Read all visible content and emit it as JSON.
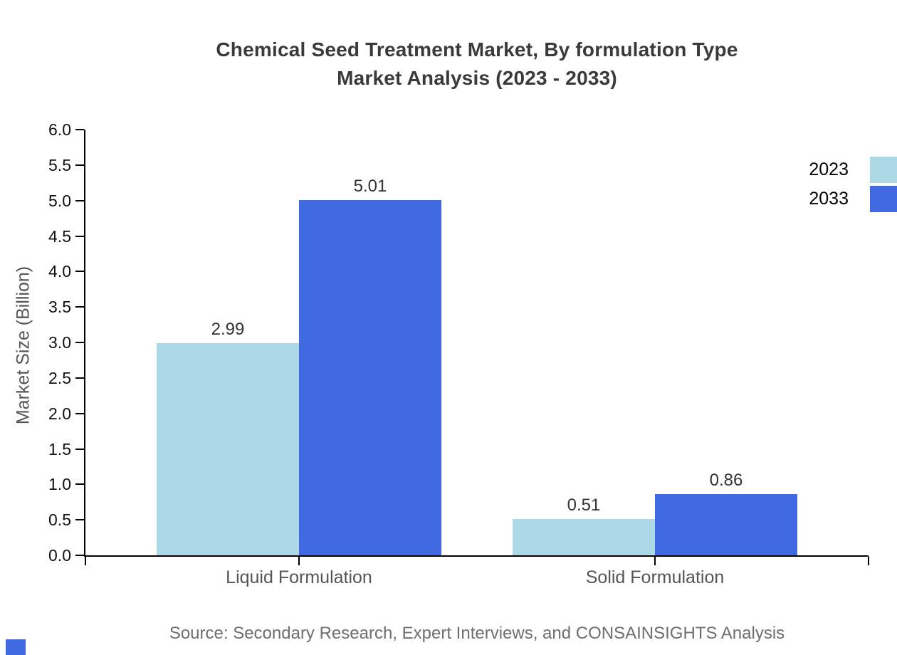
{
  "title": {
    "line1": "Chemical Seed Treatment Market, By formulation Type",
    "line2": "Market Analysis (2023 - 2033)"
  },
  "source": "Source: Secondary Research, Expert Interviews, and CONSAINSIGHTS Analysis",
  "legend": {
    "items": [
      {
        "label": "2023",
        "color": "#ADD8E6"
      },
      {
        "label": "2033",
        "color": "#4169E1"
      }
    ]
  },
  "chart_data": {
    "type": "bar",
    "title": "Chemical Seed Treatment Market, By formulation Type Market Analysis (2023 - 2033)",
    "categories": [
      "Liquid Formulation",
      "Solid Formulation"
    ],
    "series": [
      {
        "name": "2023",
        "color": "#ADD8E6",
        "values": [
          2.99,
          0.51
        ]
      },
      {
        "name": "2033",
        "color": "#4169E1",
        "values": [
          5.01,
          0.86
        ]
      }
    ],
    "xlabel": "",
    "ylabel": "Market Size (Billion)",
    "ylim": [
      0,
      6
    ],
    "ytick_step": 0.5,
    "yticks": [
      "0.0",
      "0.5",
      "1.0",
      "1.5",
      "2.0",
      "2.5",
      "3.0",
      "3.5",
      "4.0",
      "4.5",
      "5.0",
      "5.5",
      "6.0"
    ],
    "grid": false,
    "legend_position": "top-right",
    "value_label_format": "2 decimals above bar"
  },
  "colors": {
    "title": "#3a3a3a",
    "axis": "#000000",
    "tick_label": "#111111",
    "category_label": "#555555",
    "value_label": "#333333",
    "source_text": "#6e6e6e",
    "series_2023": "#ADD8E6",
    "series_2033": "#4169E1",
    "brand_mark": "#4169E1"
  }
}
